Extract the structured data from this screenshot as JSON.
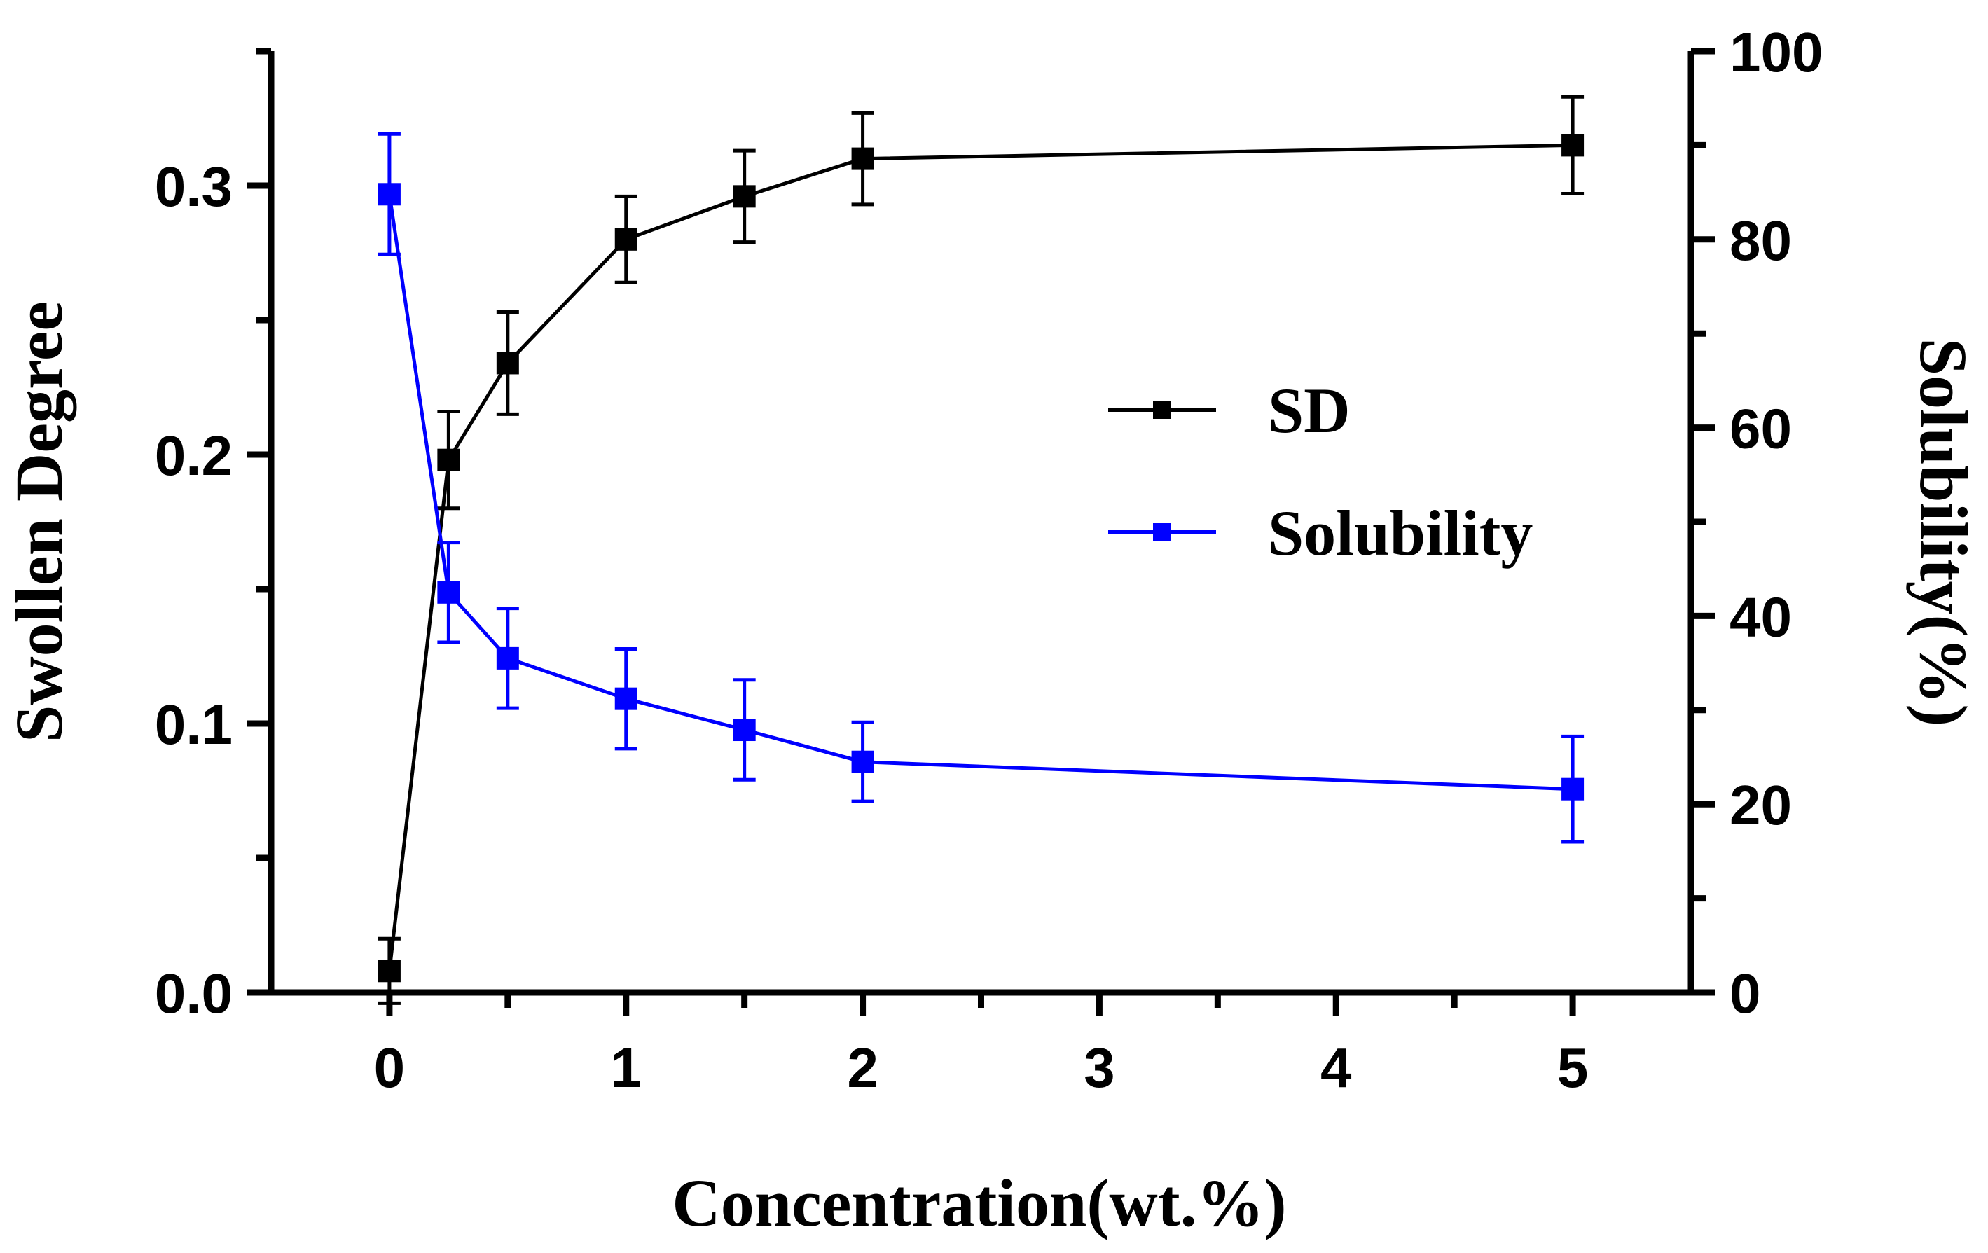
{
  "chart_data": {
    "type": "line",
    "xlabel": "Concentration(wt.%)",
    "ylabel_left": "Swollen Degree",
    "ylabel_right": "Solubility(%)",
    "x_ticks": [
      "0",
      "1",
      "2",
      "3",
      "4",
      "5"
    ],
    "y_left_ticks": [
      "0.0",
      "0.1",
      "0.2",
      "0.3"
    ],
    "y_right_ticks": [
      "0",
      "20",
      "40",
      "60",
      "80",
      "100"
    ],
    "x_axis": {
      "break_positions": [
        0,
        0.5,
        1,
        1.5,
        2,
        2.5,
        3,
        3.5,
        4,
        4.5,
        5
      ],
      "xlim": [
        -0.5,
        5.5
      ]
    },
    "ylim_left": [
      0,
      0.35
    ],
    "ylim_right": [
      0,
      100
    ],
    "x": [
      "0",
      "0.25",
      "0.5",
      "1",
      "1.5",
      "2",
      "5"
    ],
    "x_positions": [
      0,
      0.25,
      0.5,
      1,
      1.5,
      2,
      5
    ],
    "series": [
      {
        "name": "SD",
        "axis": "left",
        "color": "#000000",
        "values": [
          0.008,
          0.198,
          0.234,
          0.28,
          0.296,
          0.31,
          0.315
        ],
        "errors": [
          0.012,
          0.018,
          0.019,
          0.016,
          0.017,
          0.017,
          0.018
        ]
      },
      {
        "name": "Solubility",
        "axis": "right",
        "color": "#0000ff",
        "values": [
          84.8,
          42.5,
          35.5,
          31.2,
          27.9,
          24.5,
          21.6
        ],
        "errors": [
          6.4,
          5.3,
          5.3,
          5.3,
          5.3,
          4.2,
          5.6
        ]
      }
    ],
    "legend": {
      "position": "center-right",
      "entries": [
        "SD",
        "Solubility"
      ]
    }
  }
}
